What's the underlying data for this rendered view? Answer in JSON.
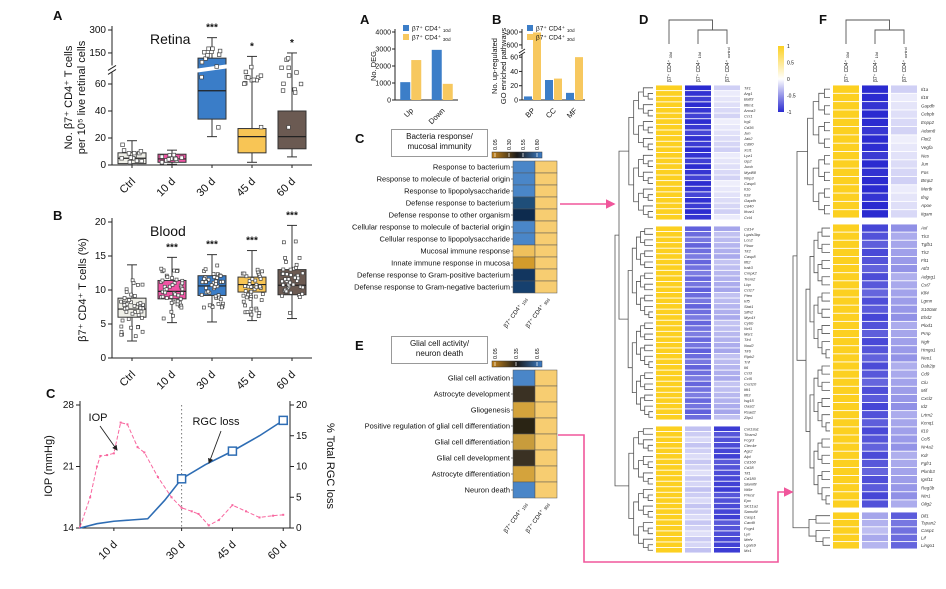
{
  "colors": {
    "accent_pink": "#F0569B",
    "box_fills": [
      "#EFEFE8",
      "#F054A4",
      "#3A7DC8",
      "#F8C555",
      "#6B5A52"
    ],
    "bar_blue": "#3C7EC8",
    "bar_gold": "#F7C85F",
    "heat_gold_pos": "#FCD021",
    "heat_blue_neg": "#2B2BD0",
    "iop_pink": "#F8679F",
    "rgc_blue": "#2E6DB4",
    "go_col30_fill": "#F7CD71"
  },
  "chart_data": [
    {
      "id": "retina",
      "panel_label": "A",
      "type": "box",
      "title": "Retina",
      "ylabel_lines": [
        "No. β7⁺ CD4⁺ T cells",
        "per 10⁵ live retinal cells"
      ],
      "categories": [
        "Ctrl",
        "10 d",
        "30 d",
        "45 d",
        "60 d"
      ],
      "yticks": [
        {
          "v": 0,
          "label": "0"
        },
        {
          "v": 20,
          "label": "20"
        },
        {
          "v": 40,
          "label": "40"
        },
        {
          "v": 60,
          "label": "60"
        },
        {
          "v": 150,
          "label": "150"
        },
        {
          "v": 300,
          "label": "300"
        }
      ],
      "anchors": [
        [
          0,
          0
        ],
        [
          60,
          0.6
        ],
        [
          150,
          0.83
        ],
        [
          300,
          1.0
        ]
      ],
      "break_frac": 0.715,
      "boxes": [
        {
          "lo": 0,
          "q1": 1,
          "med": 5,
          "q3": 9,
          "hi": 18
        },
        {
          "lo": 0.5,
          "q1": 2,
          "med": 4.5,
          "q3": 8,
          "hi": 11
        },
        {
          "lo": 21,
          "q1": 34,
          "med": 55,
          "q3": 135,
          "hi": 250
        },
        {
          "lo": 2,
          "q1": 9,
          "med": 21,
          "q3": 27,
          "hi": 140
        },
        {
          "lo": 6,
          "q1": 12,
          "med": 21,
          "q3": 40,
          "hi": 150
        }
      ],
      "n_points": [
        14,
        12,
        12,
        12,
        12
      ],
      "sig": [
        "",
        "",
        "***",
        "*",
        "*"
      ]
    },
    {
      "id": "blood",
      "panel_label": "B",
      "type": "box",
      "title": "Blood",
      "ylabel_lines": [
        "β7⁺ CD4⁺ T cells (%)"
      ],
      "categories": [
        "Ctrl",
        "10 d",
        "30 d",
        "45 d",
        "60 d"
      ],
      "yticks": [
        {
          "v": 0,
          "label": "0"
        },
        {
          "v": 5,
          "label": "5"
        },
        {
          "v": 10,
          "label": "10"
        },
        {
          "v": 15,
          "label": "15"
        },
        {
          "v": 20,
          "label": "20"
        }
      ],
      "anchors": [
        [
          0,
          0
        ],
        [
          20,
          1.0
        ]
      ],
      "boxes": [
        {
          "lo": 2.5,
          "q1": 6.0,
          "med": 7.2,
          "q3": 8.8,
          "hi": 13.7
        },
        {
          "lo": 5.2,
          "q1": 8.7,
          "med": 9.8,
          "q3": 11.4,
          "hi": 14.8
        },
        {
          "lo": 5.3,
          "q1": 9.2,
          "med": 10.6,
          "q3": 12.1,
          "hi": 15.2
        },
        {
          "lo": 5.5,
          "q1": 9.7,
          "med": 10.8,
          "q3": 11.9,
          "hi": 15.8
        },
        {
          "lo": 5.8,
          "q1": 9.3,
          "med": 10.7,
          "q3": 13.0,
          "hi": 19.5
        }
      ],
      "n_points": [
        45,
        45,
        45,
        45,
        45
      ],
      "sig": [
        "",
        "***",
        "***",
        "***",
        "***"
      ]
    },
    {
      "id": "iop",
      "panel_label": "C",
      "type": "line",
      "left_label": "IOP (mmHg)",
      "right_label": "% Total RGC loss",
      "left_ticks": [
        14,
        21,
        28
      ],
      "left_range": [
        14,
        28
      ],
      "right_ticks": [
        0,
        5,
        10,
        15,
        20
      ],
      "right_range": [
        0,
        20
      ],
      "x_range_days": [
        0,
        62
      ],
      "xticks": [
        {
          "d": 10,
          "label": "10 d"
        },
        {
          "d": 30,
          "label": "30 d"
        },
        {
          "d": 45,
          "label": "45 d"
        },
        {
          "d": 60,
          "label": "60 d"
        }
      ],
      "vline_day": 30,
      "series": [
        {
          "name": "IOP",
          "axis": "left",
          "style": "dashed-pink",
          "points": [
            [
              0,
              14.1
            ],
            [
              3,
              17.5
            ],
            [
              5,
              21.0
            ],
            [
              6,
              22.2
            ],
            [
              8,
              22.3
            ],
            [
              10,
              22.5
            ],
            [
              12,
              26.0
            ],
            [
              14,
              25.8
            ],
            [
              17,
              23.2
            ],
            [
              19,
              22.6
            ],
            [
              23,
              19.8
            ],
            [
              27,
              17.5
            ],
            [
              30,
              16.3
            ],
            [
              33,
              15.9
            ],
            [
              35,
              15.6
            ],
            [
              38,
              14.3
            ],
            [
              41,
              14.9
            ],
            [
              45,
              16.6
            ],
            [
              49,
              15.9
            ],
            [
              53,
              15.2
            ],
            [
              57,
              15.4
            ],
            [
              60,
              15.5
            ]
          ]
        },
        {
          "name": "RGC loss",
          "axis": "right",
          "style": "solid-blue",
          "points": [
            [
              0,
              0
            ],
            [
              5,
              0.7
            ],
            [
              10,
              1.1
            ],
            [
              15,
              1.3
            ],
            [
              20,
              1.5
            ],
            [
              25,
              4.5
            ],
            [
              30,
              8.0
            ],
            [
              37,
              10.3
            ],
            [
              45,
              12.5
            ],
            [
              53,
              15.0
            ],
            [
              60,
              17.5
            ]
          ],
          "marker_days": [
            30,
            45,
            60
          ]
        }
      ],
      "annotations": [
        {
          "text": "IOP"
        },
        {
          "text": "RGC loss"
        }
      ]
    },
    {
      "id": "deg",
      "panel_label": "A",
      "type": "bar",
      "ylabel_lines": [
        "No. DEG"
      ],
      "categories": [
        "Up",
        "Down"
      ],
      "yticks": [
        {
          "v": 0,
          "label": "0"
        },
        {
          "v": 1000,
          "label": "1000"
        },
        {
          "v": 2000,
          "label": "2000"
        },
        {
          "v": 3000,
          "label": "3000"
        },
        {
          "v": 4000,
          "label": "4000"
        }
      ],
      "anchors": [
        [
          0,
          0
        ],
        [
          4000,
          1.0
        ]
      ],
      "series": [
        {
          "base": "β7⁺ CD4⁺",
          "sub": "10d",
          "values": [
            1050,
            2950
          ]
        },
        {
          "base": "β7⁺ CD4⁺",
          "sub": "30d",
          "values": [
            2350,
            950
          ]
        }
      ]
    },
    {
      "id": "go",
      "panel_label": "B",
      "type": "bar",
      "ylabel_lines": [
        "No. up-regulated",
        "GO enriched pathways"
      ],
      "categories": [
        "BP",
        "CC",
        "MF"
      ],
      "yticks": [
        {
          "v": 0,
          "label": "0"
        },
        {
          "v": 20,
          "label": "20"
        },
        {
          "v": 40,
          "label": "40"
        },
        {
          "v": 60,
          "label": "60"
        },
        {
          "v": 600,
          "label": "600"
        },
        {
          "v": 900,
          "label": "900"
        }
      ],
      "anchors": [
        [
          0,
          0
        ],
        [
          60,
          0.63
        ],
        [
          600,
          0.81
        ],
        [
          900,
          1.0
        ]
      ],
      "break_frac": 0.72,
      "series": [
        {
          "base": "β7⁺ CD4⁺",
          "sub": "10d",
          "values": [
            5,
            28,
            10
          ]
        },
        {
          "base": "β7⁺ CD4⁺",
          "sub": "30d",
          "values": [
            890,
            30,
            61
          ]
        }
      ]
    },
    {
      "id": "bacteria",
      "panel_label": "C",
      "type": "go-heatmap",
      "title_lines": [
        "Bacteria response/",
        "mucosal immunity"
      ],
      "scale_labels": [
        "0.05",
        "0.30",
        "0.55",
        "0.80"
      ],
      "rows": [
        "Response to bacterium",
        "Response to molecule of bacterial origin",
        "Response to lipopolysaccharide",
        "Defense response to bacterium",
        "Defense response to other organism",
        "Cellular response to molecule of bacterial origin",
        "Cellular response to lipopolysaccharide",
        "Mucosal immune response",
        "Innate immune response in mucosa",
        "Defense response to Gram-positive bacterium",
        "Defense response to Gram-negative bacterium"
      ],
      "cells_10d": [
        "#4A86C8",
        "#4A86C8",
        "#4A86C8",
        "#1F4E79",
        "#0D2B4E",
        "#4A86C8",
        "#4A86C8",
        "#EFC05C",
        "#D39B2B",
        "#12365F",
        "#16406E"
      ],
      "col_labels": [
        {
          "base": "β7⁺ CD4⁺",
          "sub": "10d"
        },
        {
          "base": "β7⁺ CD4⁺",
          "sub": "30d"
        }
      ]
    },
    {
      "id": "glial",
      "panel_label": "E",
      "type": "go-heatmap",
      "title_lines": [
        "Glial cell activity/",
        "neuron death"
      ],
      "scale_labels": [
        "0.05",
        "0.35",
        "0.65"
      ],
      "rows": [
        "Glial cell activation",
        "Astrocyte development",
        "Gliogenesis",
        "Positive regulation of glial cell differentiation",
        "Glial cell differentiation",
        "Glial cell development",
        "Astrocyte differentiation",
        "Neuron death"
      ],
      "cells_10d": [
        "#4A86C8",
        "#3A3123",
        "#D4A33C",
        "#2A2414",
        "#C89C3C",
        "#3A3123",
        "#D4A33C",
        "#4A86C8"
      ],
      "col_labels": [
        {
          "base": "β7⁺ CD4⁺",
          "sub": "10d"
        },
        {
          "base": "β7⁺ CD4⁺",
          "sub": "30d"
        }
      ]
    },
    {
      "id": "heatD",
      "panel_label": "D",
      "type": "cluster-heatmap",
      "col_labels": [
        {
          "base": "β7⁺ CD4⁺",
          "sub": "30d"
        },
        {
          "base": "β7⁺ CD4⁺",
          "sub": "10d"
        },
        {
          "base": "β7⁺ CD4⁺",
          "sub": "control"
        }
      ],
      "legend_ticks": [
        "1",
        "0.5",
        "0",
        "-0.5",
        "-1"
      ],
      "clusters": [
        {
          "values": [
            1.0,
            -0.95,
            -0.15
          ],
          "genes": [
            "Tlr1",
            "Arg1",
            "Batf3",
            "Ifitm1",
            "Anxa3",
            "Ccr1",
            "Irg1",
            "Cd36",
            "Jun",
            "Jak2",
            "Cd80",
            "Xcl1",
            "Lyz1",
            "Gp2",
            "Junb",
            "Myd88",
            "Nlrp3",
            "Casp6",
            "Il1b",
            "Il18",
            "Gapdh",
            "Cd40",
            "Ifnar1",
            "Ccl4"
          ]
        },
        {
          "values": [
            1.0,
            -0.68,
            -0.35
          ],
          "genes": [
            "Cd14",
            "Lgals3bp",
            "Lcn2",
            "Plaur",
            "Tlr2",
            "Casp8",
            "Ifit2",
            "Irak3",
            "Cmpk2",
            "Trem2",
            "Lbp",
            "Ccl17",
            "Pten",
            "Irf5",
            "Stat1",
            "Slfn2",
            "Myo1f",
            "Cybb",
            "Ncf1",
            "Msr1",
            "Tlr4",
            "Nod2",
            "Tlr6",
            "Ripk2",
            "Tnf",
            "Il6",
            "Ccl3",
            "Ccl5",
            "Cxcl10",
            "Ifit1",
            "Ifit3",
            "Isg15",
            "Oasl2",
            "Rsad2",
            "Zbp1"
          ]
        },
        {
          "values": [
            1.0,
            -0.22,
            -0.85
          ],
          "genes": [
            "Col13a1",
            "Ticam2",
            "Fcgr3",
            "Clec4e",
            "Agr2",
            "Alpl",
            "Cd160",
            "Cd38",
            "Tll1",
            "Cd180",
            "Slamf8",
            "Nt5e",
            "Prkcd",
            "Epx",
            "Slc11a1",
            "Samd9l",
            "Casp1",
            "Card9",
            "Fcgr4",
            "Lyn",
            "Mefv",
            "Lgals9",
            "Mx1"
          ]
        }
      ]
    },
    {
      "id": "heatF",
      "panel_label": "F",
      "type": "cluster-heatmap",
      "col_labels": [
        {
          "base": "β7⁺ CD4⁺",
          "sub": "30d"
        },
        {
          "base": "β7⁺ CD4⁺",
          "sub": "10d"
        },
        {
          "base": "β7⁺ CD4⁺",
          "sub": "control"
        }
      ],
      "clusters": [
        {
          "values": [
            1.0,
            -1.0,
            -0.15
          ],
          "genes": [
            "Il1a",
            "Il18",
            "Gapdh",
            "Cebpb",
            "Enpp2",
            "Adam8",
            "Flot2",
            "Vegfa",
            "Nes",
            "Jun",
            "Fos",
            "Bmp2",
            "Mertk",
            "Ifng",
            "Apoe",
            "Itgam"
          ]
        },
        {
          "values": [
            1.0,
            -0.8,
            -0.45
          ],
          "genes": [
            "Axl",
            "Tlr3",
            "Tgfb1",
            "Tlr2",
            "Flt1",
            "Atf3",
            "Adgrg1",
            "Cst7",
            "Klf4",
            "Lgmn",
            "S100a8",
            "Ehd2",
            "Plod1",
            "Prnp",
            "Ngfr",
            "Hmga1",
            "Neo1",
            "Dab2ip",
            "Cd9",
            "Clu",
            "Mif",
            "Cxcl2",
            "Id2",
            "Lrtm2",
            "Kcnq1",
            "Il10",
            "Ccl5",
            "Nr4a2",
            "Kdr",
            "Fgfr1",
            "Plxnb3",
            "Igsf11",
            "Reg3b",
            "Ntn1",
            "Olig2"
          ]
        },
        {
          "values": [
            1.0,
            -0.35,
            -0.7
          ],
          "genes": [
            "Dll1",
            "Tspan2",
            "Casp1",
            "Lif",
            "Lingo1"
          ]
        }
      ]
    }
  ]
}
